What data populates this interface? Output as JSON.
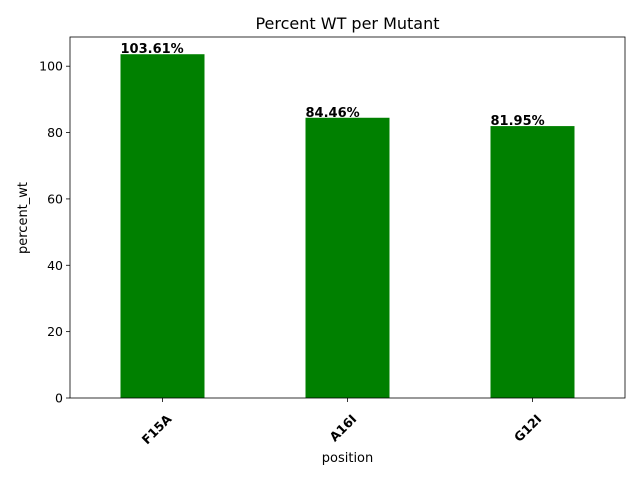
{
  "chart_data": {
    "type": "bar",
    "title": "Percent WT per Mutant",
    "xlabel": "position",
    "ylabel": "percent_wt",
    "categories": [
      "F15A",
      "A16I",
      "G12I"
    ],
    "values": [
      103.61,
      84.46,
      81.95
    ],
    "data_labels": [
      "103.61%",
      "84.46%",
      "81.95%"
    ],
    "yticks": [
      0,
      20,
      40,
      60,
      80,
      100
    ],
    "ylim": [
      0,
      108.8
    ],
    "bar_color": "#008000",
    "grid": false,
    "legend": "none",
    "xtick_rotation": 45
  }
}
